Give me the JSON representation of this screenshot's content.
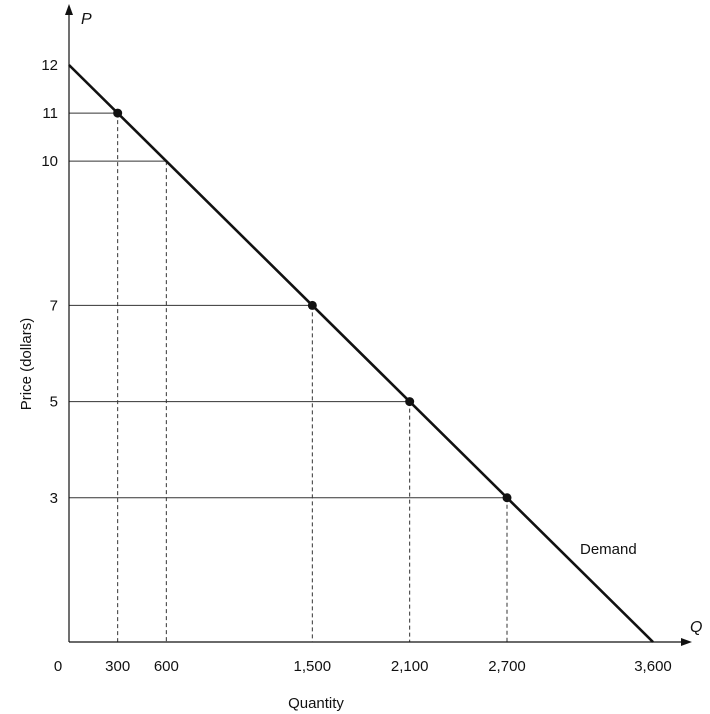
{
  "chart_data": {
    "type": "line",
    "title": "",
    "xlabel": "Quantity",
    "ylabel": "Price (dollars)",
    "x_axis_symbol": "Q",
    "y_axis_symbol": "P",
    "origin_label": "0",
    "xlim": [
      0,
      3600
    ],
    "ylim": [
      0,
      12
    ],
    "x_ticks": [
      300,
      600,
      1500,
      2100,
      2700,
      3600
    ],
    "x_tick_labels": [
      "300",
      "600",
      "1,500",
      "2,100",
      "2,700",
      "3,600"
    ],
    "y_ticks": [
      3,
      5,
      7,
      10,
      11,
      12
    ],
    "y_tick_labels": [
      "3",
      "5",
      "7",
      "10",
      "11",
      "12"
    ],
    "series": [
      {
        "name": "Demand",
        "x": [
          0,
          3600
        ],
        "y": [
          12,
          0
        ]
      }
    ],
    "marked_points": [
      {
        "x": 300,
        "y": 11
      },
      {
        "x": 1500,
        "y": 7
      },
      {
        "x": 2100,
        "y": 5
      },
      {
        "x": 2700,
        "y": 3
      }
    ],
    "guide_points": [
      {
        "x": 300,
        "y": 11
      },
      {
        "x": 600,
        "y": 10
      },
      {
        "x": 1500,
        "y": 7
      },
      {
        "x": 2100,
        "y": 5
      },
      {
        "x": 2700,
        "y": 3
      }
    ],
    "grid": false,
    "legend": "none",
    "colors": {
      "ink": "#111111",
      "guide": "#333333"
    }
  }
}
